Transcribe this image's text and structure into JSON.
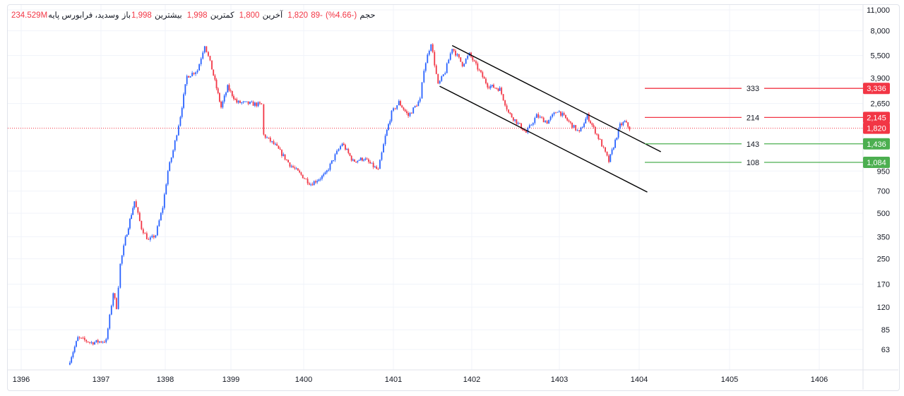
{
  "legend": {
    "symbol": "وسدید، فرابورس پایه",
    "open_label": "باز",
    "open": "1,998",
    "high_label": "بیشترین",
    "high": "1,998",
    "low_label": "کمترین",
    "low": "1,800",
    "last_label": "آخرین",
    "last": "1,820",
    "change": "-89",
    "change_pct": "(-4.66%)",
    "volume_label": "حجم",
    "volume": "234.529M"
  },
  "colors": {
    "up": "#2962ff",
    "down": "#f23645",
    "level_red": "#f23645",
    "level_green": "#4caf50",
    "channel": "#000000"
  },
  "chart_data": {
    "type": "candlestick",
    "scale": "log",
    "grid": true,
    "ylim": [
      45,
      11000
    ],
    "y_ticks": [
      "11,000",
      "8,000",
      "5,500",
      "3,900",
      "2,650",
      "950",
      "700",
      "500",
      "350",
      "250",
      "170",
      "120",
      "85",
      "63"
    ],
    "y_tick_values": [
      11000,
      8000,
      5500,
      3900,
      2650,
      950,
      700,
      500,
      350,
      250,
      170,
      120,
      85,
      63
    ],
    "x_ticks": [
      "1396",
      "1397",
      "1398",
      "1399",
      "1400",
      "1401",
      "1402",
      "1403",
      "1404",
      "1405",
      "1406"
    ],
    "close_path": [
      [
        1396.59,
        50
      ],
      [
        1396.71,
        75
      ],
      [
        1396.88,
        70
      ],
      [
        1397.08,
        72
      ],
      [
        1397.19,
        150
      ],
      [
        1397.24,
        120
      ],
      [
        1397.3,
        230
      ],
      [
        1397.38,
        340
      ],
      [
        1397.52,
        600
      ],
      [
        1397.63,
        400
      ],
      [
        1397.74,
        330
      ],
      [
        1397.85,
        360
      ],
      [
        1397.96,
        550
      ],
      [
        1398.04,
        950
      ],
      [
        1398.12,
        1300
      ],
      [
        1398.23,
        2200
      ],
      [
        1398.33,
        4000
      ],
      [
        1398.49,
        4400
      ],
      [
        1398.6,
        6500
      ],
      [
        1398.71,
        4500
      ],
      [
        1398.85,
        2500
      ],
      [
        1398.95,
        3400
      ],
      [
        1399.08,
        2700
      ],
      [
        1399.42,
        2600
      ],
      [
        1399.45,
        1640
      ],
      [
        1399.61,
        1400
      ],
      [
        1399.81,
        1050
      ],
      [
        1400.08,
        780
      ],
      [
        1400.24,
        900
      ],
      [
        1400.35,
        1200
      ],
      [
        1400.43,
        1450
      ],
      [
        1400.55,
        1100
      ],
      [
        1400.67,
        1150
      ],
      [
        1400.83,
        960
      ],
      [
        1400.91,
        1600
      ],
      [
        1400.98,
        2300
      ],
      [
        1401.07,
        2700
      ],
      [
        1401.19,
        2200
      ],
      [
        1401.34,
        2800
      ],
      [
        1401.39,
        4500
      ],
      [
        1401.48,
        6700
      ],
      [
        1401.57,
        3500
      ],
      [
        1401.66,
        4300
      ],
      [
        1401.75,
        6200
      ],
      [
        1401.88,
        4800
      ],
      [
        1401.97,
        5600
      ],
      [
        1402.18,
        3500
      ],
      [
        1402.32,
        3300
      ],
      [
        1402.42,
        2300
      ],
      [
        1402.62,
        1700
      ],
      [
        1402.74,
        2200
      ],
      [
        1402.86,
        2000
      ],
      [
        1402.98,
        2400
      ],
      [
        1403.16,
        1900
      ],
      [
        1403.25,
        1700
      ],
      [
        1403.35,
        2200
      ],
      [
        1403.51,
        1500
      ],
      [
        1403.62,
        1100
      ],
      [
        1403.76,
        1900
      ],
      [
        1403.82,
        2000
      ],
      [
        1403.88,
        1820
      ]
    ],
    "last_price": 1820,
    "channel": [
      {
        "from": [
          1401.75,
          6400
        ],
        "to": [
          1404.24,
          1272
        ]
      },
      {
        "from": [
          1401.59,
          3450
        ],
        "to": [
          1404.09,
          690
        ]
      }
    ],
    "levels": [
      {
        "price": 3336,
        "price_label": "3,336",
        "label": "333",
        "color": "red"
      },
      {
        "price": 2145,
        "price_label": "2,145",
        "label": "214",
        "color": "red"
      },
      {
        "price": 1436,
        "price_label": "1,436",
        "label": "143",
        "color": "green"
      },
      {
        "price": 1084,
        "price_label": "1,084",
        "label": "108",
        "color": "green"
      }
    ],
    "last_price_label": "1,820"
  }
}
